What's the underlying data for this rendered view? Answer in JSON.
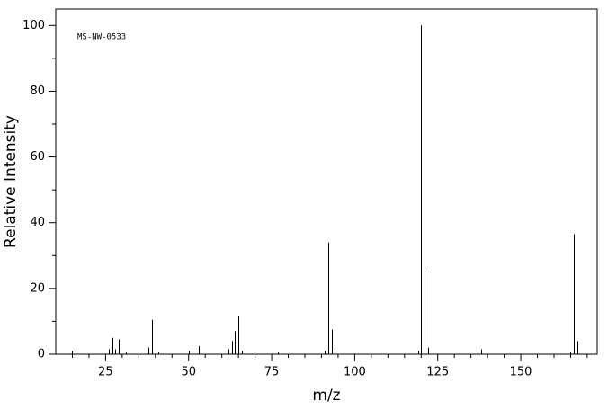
{
  "chart_data": {
    "type": "stem",
    "annotation": "MS-NW-0533",
    "xlabel": "m/z",
    "ylabel": "Relative Intensity",
    "x": [
      15,
      26,
      27,
      28,
      29,
      31,
      38,
      39,
      41,
      50,
      51,
      53,
      62,
      63,
      64,
      65,
      66,
      77,
      91,
      92,
      93,
      94,
      119,
      120,
      121,
      122,
      138,
      165,
      166,
      167
    ],
    "values": [
      1,
      1.5,
      5,
      1.5,
      4.5,
      0.5,
      2,
      10.5,
      0.5,
      1,
      1,
      2.5,
      1.5,
      4,
      7,
      11.5,
      1,
      0.5,
      1,
      34,
      7.5,
      1,
      1,
      100,
      25.5,
      2,
      1.5,
      0.5,
      36.5,
      4
    ],
    "color": "#000000",
    "xlim": [
      10,
      173
    ],
    "ylim": [
      0,
      105
    ],
    "xticks": [
      25,
      50,
      75,
      100,
      125,
      150
    ],
    "xminorticks": [
      15,
      20,
      30,
      35,
      40,
      45,
      55,
      60,
      65,
      70,
      80,
      85,
      90,
      95,
      105,
      110,
      115,
      120,
      130,
      135,
      140,
      145,
      155,
      160,
      165,
      170
    ],
    "yticks": [
      0,
      20,
      40,
      60,
      80,
      100
    ],
    "yminorticks": [
      10,
      30,
      50,
      70,
      90
    ]
  }
}
